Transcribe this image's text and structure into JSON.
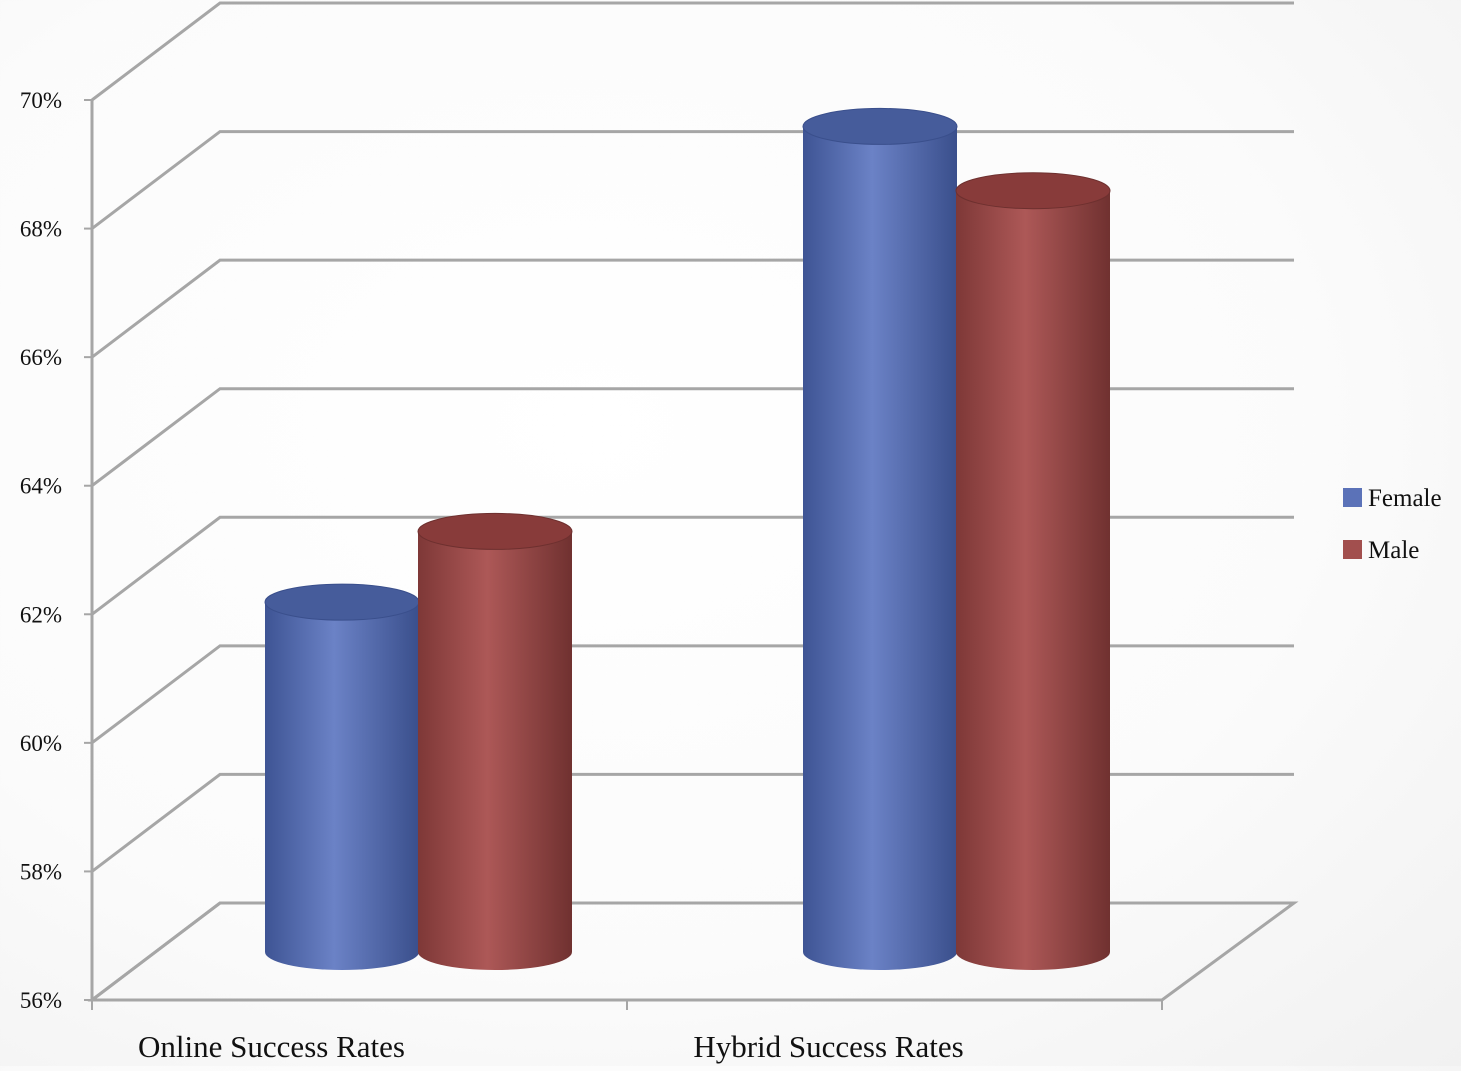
{
  "chart_data": {
    "type": "bar",
    "style": "3d-cylinder",
    "categories": [
      "Online Success Rates",
      "Hybrid Success Rates"
    ],
    "series": [
      {
        "name": "Female",
        "values": [
          61.8,
          69.2
        ],
        "color": "#5b72b8"
      },
      {
        "name": "Male",
        "values": [
          62.9,
          68.2
        ],
        "color": "#a24f4e"
      }
    ],
    "yticks": [
      "56%",
      "58%",
      "60%",
      "62%",
      "64%",
      "66%",
      "68%",
      "70%"
    ],
    "ylim": [
      56,
      70
    ],
    "grid": true,
    "legend_position": "right",
    "title": "",
    "xlabel": "",
    "ylabel": ""
  }
}
